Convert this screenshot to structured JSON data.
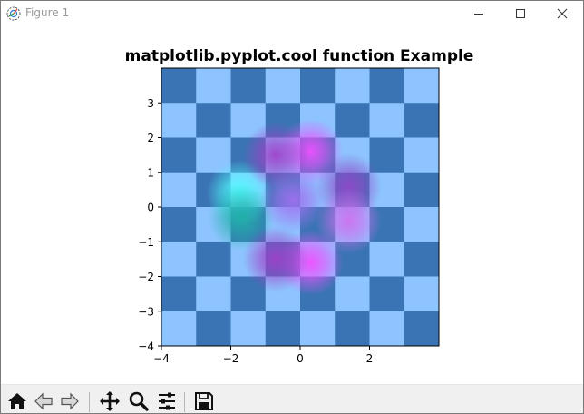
{
  "window": {
    "title": "Figure 1",
    "icon": "matplotlib-figure-icon",
    "controls": [
      "minimize-icon",
      "maximize-icon",
      "close-icon"
    ]
  },
  "toolbar": {
    "buttons": [
      {
        "name": "home-button",
        "icon": "home-icon"
      },
      {
        "name": "back-button",
        "icon": "back-arrow-icon"
      },
      {
        "name": "forward-button",
        "icon": "forward-arrow-icon"
      },
      {
        "name": "pan-button",
        "icon": "move-icon"
      },
      {
        "name": "zoom-button",
        "icon": "zoom-icon"
      },
      {
        "name": "configure-subplots-button",
        "icon": "sliders-icon"
      },
      {
        "name": "save-button",
        "icon": "save-icon"
      }
    ]
  },
  "chart_data": {
    "type": "heatmap",
    "title": "matplotlib.pyplot.cool function Example",
    "xlabel": "",
    "ylabel": "",
    "xlim": [
      -4,
      4
    ],
    "ylim": [
      -4,
      4
    ],
    "xticks": [
      -4,
      -2,
      0,
      2
    ],
    "xtick_labels": [
      "−4",
      "−2",
      "0",
      "2"
    ],
    "yticks": [
      -4,
      -3,
      -2,
      -1,
      0,
      1,
      2,
      3
    ],
    "ytick_labels": [
      "−4",
      "−3",
      "−2",
      "−1",
      "0",
      "1",
      "2",
      "3"
    ],
    "grid": false,
    "layers": [
      {
        "name": "checkerboard",
        "colormap": "binary-like blue",
        "grid_size": [
          8,
          8
        ],
        "cell_extent": [
          -4,
          4,
          -4,
          4
        ],
        "colors": {
          "dark": "#3a74b4",
          "light": "#8dc4ff"
        }
      },
      {
        "name": "function overlay",
        "colormap": "cool",
        "alpha": 0.9,
        "blobs": [
          {
            "x": -1.75,
            "y": 0.4,
            "color": "#50ffff",
            "peak": "cyan"
          },
          {
            "x": -1.7,
            "y": -0.3,
            "color": "#1fb0a8",
            "peak": "teal"
          },
          {
            "x": 0.3,
            "y": 1.6,
            "color": "#f050ff",
            "peak": "magenta"
          },
          {
            "x": 0.3,
            "y": -1.6,
            "color": "#f050ff",
            "peak": "magenta"
          },
          {
            "x": -0.7,
            "y": 1.5,
            "color": "#a040c8",
            "peak": "purple"
          },
          {
            "x": -0.7,
            "y": -1.5,
            "color": "#a040c8",
            "peak": "purple"
          },
          {
            "x": 1.4,
            "y": 0.6,
            "color": "#9048c8",
            "peak": "purple"
          },
          {
            "x": 1.4,
            "y": -0.4,
            "color": "#d070f0",
            "peak": "violet"
          },
          {
            "x": -0.2,
            "y": 0.2,
            "color": "#a070f0",
            "peak": "violet"
          }
        ]
      }
    ]
  }
}
